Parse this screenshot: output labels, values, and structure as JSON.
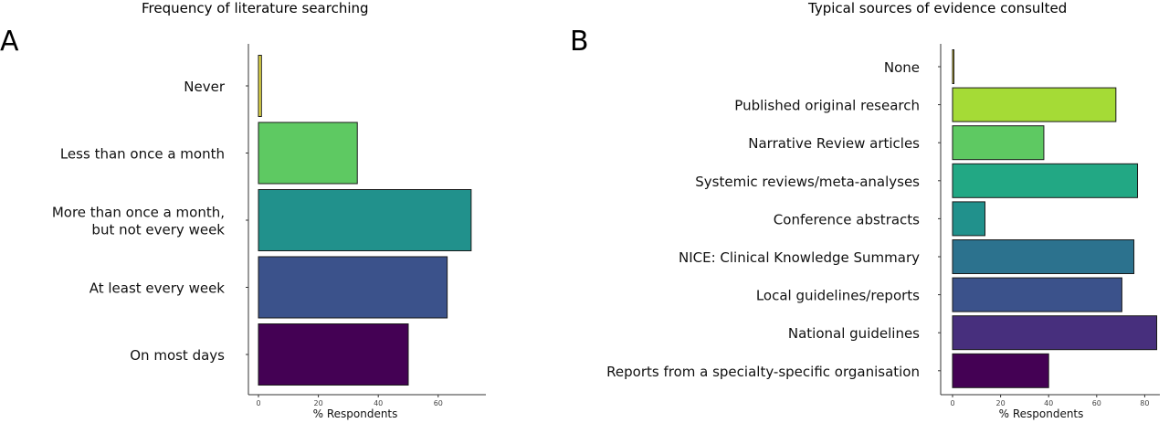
{
  "chart_data": [
    {
      "type": "bar",
      "orientation": "horizontal",
      "panel_label": "A",
      "title": "Frequency of literature searching",
      "xlabel": "% Respondents",
      "ylabel": "",
      "xlim": [
        0,
        75
      ],
      "xticks": [
        0,
        20,
        40,
        60
      ],
      "grid": false,
      "categories": [
        "Never",
        "Less than once a month",
        "More than once a month, but not every week",
        "At least every week",
        "On most days"
      ],
      "category_lines": [
        [
          "Never"
        ],
        [
          "Less than once a month"
        ],
        [
          "More than once a month,",
          "but not every week"
        ],
        [
          "At least every week"
        ],
        [
          "On most days"
        ]
      ],
      "values": [
        1,
        33,
        71,
        63,
        50
      ],
      "colors": [
        "#e8de4a",
        "#5ec962",
        "#21918c",
        "#3b528b",
        "#440154"
      ]
    },
    {
      "type": "bar",
      "orientation": "horizontal",
      "panel_label": "B",
      "title": "Typical sources of evidence consulted",
      "xlabel": "% Respondents",
      "ylabel": "",
      "xlim": [
        0,
        86
      ],
      "xticks": [
        0,
        20,
        40,
        60,
        80
      ],
      "grid": false,
      "categories": [
        "None",
        "Published original research",
        "Narrative Review articles",
        "Systemic reviews/meta-analyses",
        "Conference abstracts",
        "NICE: Clinical Knowledge Summary",
        "Local guidelines/reports",
        "National guidelines",
        "Reports from a specialty-specific organisation"
      ],
      "category_lines": [
        [
          "None"
        ],
        [
          "Published original research"
        ],
        [
          "Narrative Review articles"
        ],
        [
          "Systemic reviews/meta-analyses"
        ],
        [
          "Conference abstracts"
        ],
        [
          "NICE: Clinical Knowledge Summary"
        ],
        [
          "Local guidelines/reports"
        ],
        [
          "National guidelines"
        ],
        [
          "Reports from a specialty-specific organisation"
        ]
      ],
      "values": [
        0.5,
        68,
        38,
        77,
        13.5,
        75.5,
        70.5,
        85,
        40
      ],
      "colors": [
        "#fde725",
        "#a5db36",
        "#5ec962",
        "#22a884",
        "#21918c",
        "#2c728e",
        "#3b528b",
        "#472f7d",
        "#440154"
      ]
    }
  ]
}
